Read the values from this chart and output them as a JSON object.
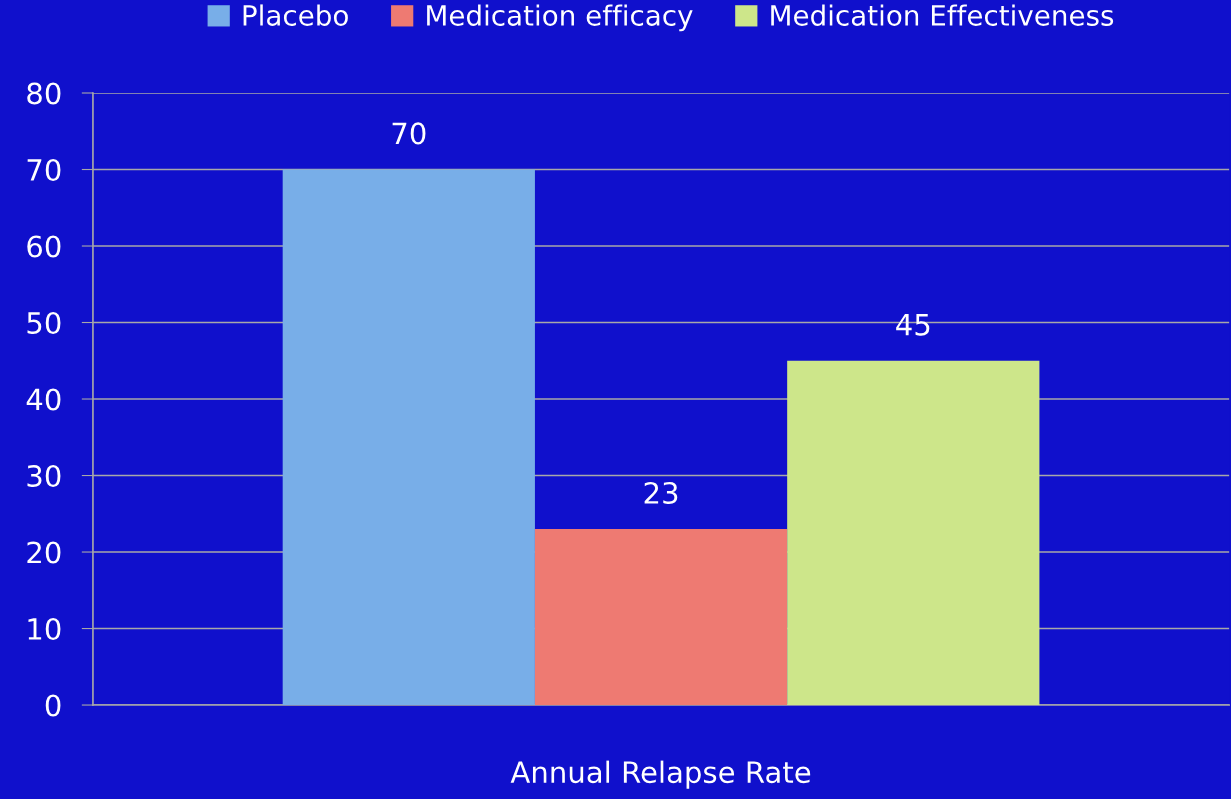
{
  "chart_data": {
    "type": "bar",
    "categories": [
      "Annual Relapse Rate"
    ],
    "series": [
      {
        "name": "Placebo",
        "color": "#78aee8",
        "values": [
          70
        ]
      },
      {
        "name": "Medication efficacy",
        "color": "#ee7a72",
        "values": [
          23
        ]
      },
      {
        "name": "Medication Effectiveness",
        "color": "#cde68a",
        "values": [
          45
        ]
      }
    ],
    "ylim": [
      0,
      80
    ],
    "yticks": [
      0,
      10,
      20,
      30,
      40,
      50,
      60,
      70,
      80
    ],
    "grid": "y",
    "legend": "top",
    "data_labels": true
  }
}
